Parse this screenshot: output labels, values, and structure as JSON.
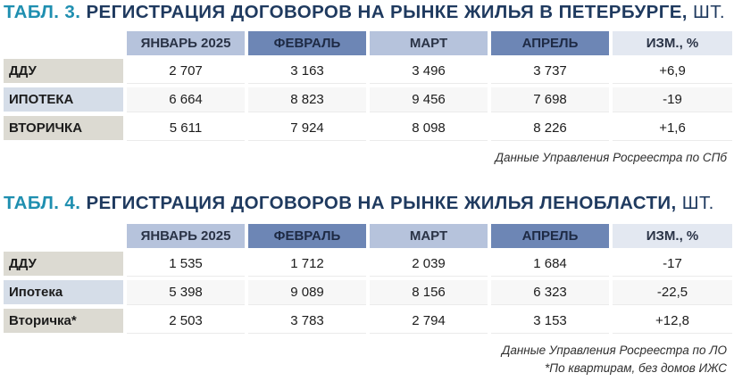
{
  "table3": {
    "title_prefix": "ТАБЛ. 3.",
    "title_main": "РЕГИСТРАЦИЯ ДОГОВОРОВ НА РЫНКЕ ЖИЛЬЯ В ПЕТЕРБУРГЕ,",
    "title_unit": "ШТ.",
    "headers": [
      "ЯНВАРЬ 2025",
      "ФЕВРАЛЬ",
      "МАРТ",
      "АПРЕЛЬ",
      "ИЗМ., %"
    ],
    "rows": [
      {
        "label": "ДДУ",
        "values": [
          "2 707",
          "3 163",
          "3 496",
          "3 737",
          "+6,9"
        ]
      },
      {
        "label": "ИПОТЕКА",
        "values": [
          "6 664",
          "8 823",
          "9 456",
          "7 698",
          "-19"
        ]
      },
      {
        "label": "ВТОРИЧКА",
        "values": [
          "5 611",
          "7 924",
          "8 098",
          "8 226",
          "+1,6"
        ]
      }
    ],
    "source": "Данные Управления Росреестра по СПб"
  },
  "table4": {
    "title_prefix": "ТАБЛ. 4.",
    "title_main": "РЕГИСТРАЦИЯ ДОГОВОРОВ НА РЫНКЕ ЖИЛЬЯ ЛЕНОБЛАСТИ,",
    "title_unit": "ШТ.",
    "headers": [
      "ЯНВАРЬ 2025",
      "ФЕВРАЛЬ",
      "МАРТ",
      "АПРЕЛЬ",
      "ИЗМ., %"
    ],
    "rows": [
      {
        "label": "ДДУ",
        "values": [
          "1 535",
          "1 712",
          "2 039",
          "1 684",
          "-17"
        ]
      },
      {
        "label": "Ипотека",
        "values": [
          "5 398",
          "9 089",
          "8 156",
          "6 323",
          "-22,5"
        ]
      },
      {
        "label": "Вторичка*",
        "values": [
          "2 503",
          "3 783",
          "2 794",
          "3 153",
          "+12,8"
        ]
      }
    ],
    "source": "Данные Управления Росреестра по ЛО",
    "footnote": "*По квартирам, без домов ИЖС"
  }
}
